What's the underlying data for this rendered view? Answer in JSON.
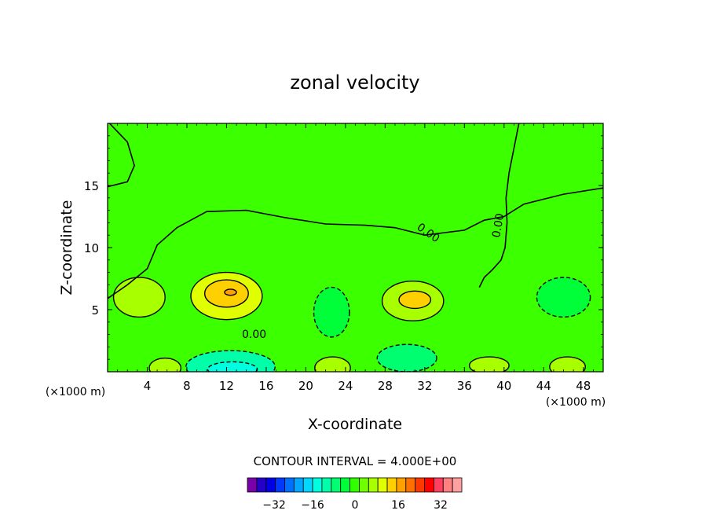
{
  "chart_data": {
    "type": "heatmap",
    "title": "zonal velocity",
    "xlabel": "X-coordinate",
    "ylabel": "Z-coordinate",
    "x_unit": "(×1000 m)",
    "x_ticks": [
      4,
      8,
      12,
      16,
      20,
      24,
      28,
      32,
      36,
      40,
      44,
      48
    ],
    "y_ticks": [
      5,
      10,
      15
    ],
    "xlim": [
      0,
      50
    ],
    "ylim": [
      0,
      20
    ],
    "contour_interval_text": "CONTOUR INTERVAL = 4.000E+00",
    "contour_labels": [
      "0.00",
      "0.00",
      "0.00"
    ],
    "colorbar": {
      "ticks": [
        "−32",
        "−16",
        "0",
        "16",
        "32"
      ],
      "colors": [
        "#7a00a8",
        "#2400c8",
        "#0000e6",
        "#0038ff",
        "#0070ff",
        "#00a8ff",
        "#00d8ff",
        "#00ffe0",
        "#00ffa8",
        "#00ff70",
        "#00ff38",
        "#30ff00",
        "#70ff00",
        "#a8ff00",
        "#e0ff00",
        "#ffd000",
        "#ffa000",
        "#ff7000",
        "#ff3800",
        "#ff0000",
        "#ff4060",
        "#ff8080",
        "#ffa0a0"
      ]
    },
    "field": {
      "background": "#3cff00",
      "regions": [
        {
          "kind": "zero_line_upper",
          "points": [
            [
              0,
              14.9
            ],
            [
              2,
              15.3
            ],
            [
              2.7,
              16.6
            ],
            [
              2,
              18.5
            ],
            [
              0.2,
              20
            ]
          ]
        },
        {
          "kind": "zero_line_main",
          "points": [
            [
              0,
              5.9
            ],
            [
              2,
              7
            ],
            [
              4,
              8.3
            ],
            [
              5,
              10.2
            ],
            [
              7,
              11.6
            ],
            [
              10,
              12.9
            ],
            [
              14,
              13
            ],
            [
              18,
              12.4
            ],
            [
              22,
              11.9
            ],
            [
              26,
              11.8
            ],
            [
              29,
              11.6
            ],
            [
              32,
              11
            ],
            [
              36,
              11.4
            ],
            [
              38,
              12.2
            ],
            [
              40,
              12.5
            ],
            [
              42,
              13.5
            ],
            [
              46,
              14.3
            ],
            [
              50,
              14.8
            ]
          ]
        },
        {
          "kind": "zero_line_right",
          "points": [
            [
              41.5,
              20
            ],
            [
              41,
              18
            ],
            [
              40.5,
              16
            ],
            [
              40.2,
              14
            ],
            [
              40.3,
              12
            ],
            [
              40.1,
              10
            ],
            [
              39.7,
              9
            ],
            [
              38.8,
              8.2
            ],
            [
              38,
              7.6
            ],
            [
              37.5,
              6.8
            ]
          ]
        }
      ],
      "cells": [
        {
          "x": 12,
          "z": 6.1,
          "rx": 3.6,
          "rz": 1.9,
          "value": 12
        },
        {
          "x": 12,
          "z": 6.3,
          "rx": 2.2,
          "rz": 1.1,
          "value": 16
        },
        {
          "x": 12.4,
          "z": 6.4,
          "rx": 0.6,
          "rz": 0.25,
          "value": 20
        },
        {
          "x": 30.8,
          "z": 5.7,
          "rx": 3.1,
          "rz": 1.6,
          "value": 8
        },
        {
          "x": 31,
          "z": 5.8,
          "rx": 1.6,
          "rz": 0.7,
          "value": 16
        },
        {
          "x": 3.2,
          "z": 6,
          "rx": 2.6,
          "rz": 1.6,
          "value": 8
        },
        {
          "x": 12.4,
          "z": 0.4,
          "rx": 4.5,
          "rz": 1.3,
          "value": -12
        },
        {
          "x": 12.6,
          "z": 0.2,
          "rx": 2.5,
          "rz": 0.6,
          "value": -16
        },
        {
          "x": 30.2,
          "z": 1.1,
          "rx": 3,
          "rz": 1.1,
          "value": -8
        },
        {
          "x": 22.6,
          "z": 4.8,
          "rx": 1.8,
          "rz": 2,
          "value": -4
        },
        {
          "x": 46,
          "z": 6,
          "rx": 2.7,
          "rz": 1.6,
          "value": -4
        },
        {
          "x": 5.8,
          "z": 0.3,
          "rx": 1.6,
          "rz": 0.8,
          "value": 8
        },
        {
          "x": 22.7,
          "z": 0.3,
          "rx": 1.8,
          "rz": 0.9,
          "value": 8
        },
        {
          "x": 46.4,
          "z": 0.4,
          "rx": 1.8,
          "rz": 0.8,
          "value": 8
        },
        {
          "x": 38.5,
          "z": 0.5,
          "rx": 2,
          "rz": 0.7,
          "value": 8
        }
      ]
    }
  }
}
